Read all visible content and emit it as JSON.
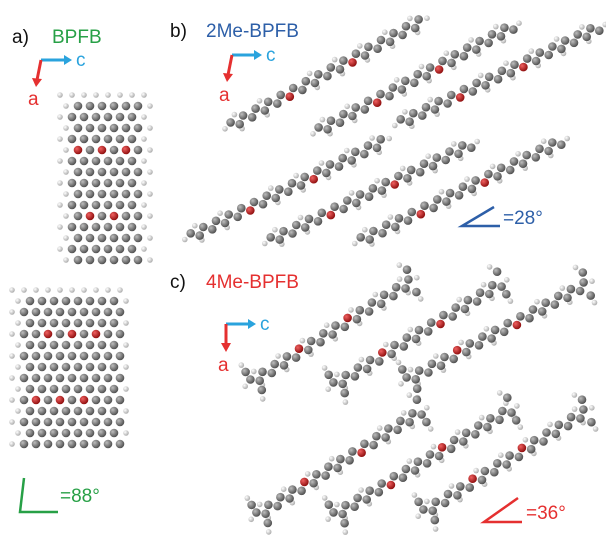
{
  "panels": [
    {
      "label": "a)",
      "title": "BPFB",
      "axis_labels": [
        "c",
        "a"
      ],
      "angle": "=88°"
    },
    {
      "label": "b)",
      "title": "2Me-BPFB",
      "axis_labels": [
        "c",
        "a"
      ],
      "angle": "=28°"
    },
    {
      "label": "c)",
      "title": "4Me-BPFB",
      "axis_labels": [
        "c",
        "a"
      ],
      "angle": "=36°"
    }
  ]
}
